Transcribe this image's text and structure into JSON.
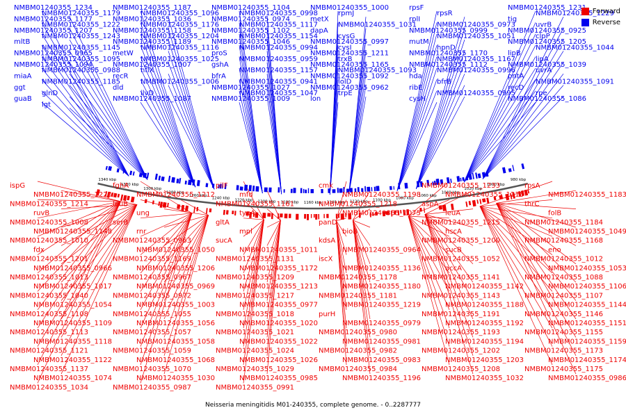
{
  "caption": "Neisseria meningitidis M01-240355, complete genome. - 0..2287777",
  "legend": [
    {
      "label": "Forward",
      "color": "#ee0000"
    },
    {
      "label": "Reverse",
      "color": "#0000ee"
    }
  ],
  "colors": {
    "forward": "#ee0000",
    "reverse": "#0000ee",
    "backbone": "#555555"
  },
  "ticks": [
    "1340 kbp",
    "1320 kbp",
    "1300 kbp",
    "1280 kbp",
    "1260 kbp",
    "1240 kbp",
    "1220 kbp",
    "1200 kbp",
    "1180 kbp",
    "1160 kbp",
    "1140 kbp",
    "1120 kbp",
    "1100 kbp",
    "1080 kbp",
    "1060 kbp",
    "1040 kbp",
    "1020 kbp",
    "1000 kbp",
    "980 kbp"
  ],
  "reverse_labels": [
    "NMBM01240355_1234",
    "NMBM01240355_1187",
    "NMBM01240355_1104",
    "NMBM01240355_1000",
    "rpsF",
    "NMBM01240355_1231",
    "NMBM01240355_1179",
    "NMBM01240355_1096",
    "NMBM01240355_0998",
    "rpmJ",
    "rpsR",
    "NMBM01240355_1229",
    "NMBM01240355_1177",
    "NMBM01240355_1036",
    "NMBM01240355_0974",
    "metX",
    "rplI",
    "tig",
    "NMBM01240355_1222",
    "NMBM01240355_1176",
    "NMBM01240355_1117",
    "NMBM01240355_1031",
    "NMBM01240355_0973",
    "uvrB",
    "NMBM01240355_1207",
    "NMBM01240355_1158",
    "NMBM01240355_1102",
    "dapA",
    "NMBM01240355_0999",
    "NMBM01240355_0925",
    "NMBM01240355_1243",
    "NMBM01240355_1204",
    "NMBM01240355_1154",
    "cysG",
    "NMBM01240355_1051",
    "clpP",
    "mltB",
    "NMBM01240355_1189",
    "NMBM01240355_1046",
    "NMBM01240355_0997",
    "mutM",
    "NMBM01240355_1205",
    "NMBM01240355_1145",
    "NMBM01240355_1116",
    "NMBM01240355_0994",
    "cysI",
    "hpnD",
    "NMBM01240355_1044",
    "NMBM01240355_0965",
    "metW",
    "proS",
    "NMBM01240355_1211",
    "NMBM01240355_1170",
    "lipB",
    "NMBM01240355_1095",
    "NMBM01240355_1025",
    "NMBM01240355_0959",
    "trxB",
    "NMBM01240355_1167",
    "lipA",
    "NMBM01240355_1094",
    "NMBM01240355_1007",
    "gshA",
    "NMBM01240355_1165",
    "NMBM01240355_1112",
    "NMBM01240355_1039",
    "NMBM01240355_0988",
    "hflX",
    "NMBM01240355_1157",
    "NMBM01240355_1093",
    "NMBM01240355_0996",
    "uvrA",
    "miaA",
    "recR",
    "bfrA",
    "NMBM01240355_1092",
    "hda",
    "pntA",
    "NMBM01240355_1185",
    "NMBM01240355_1006",
    "NMBM01240355_0941",
    "lolD",
    "bfrB",
    "NMBM01240355_1091",
    "ggt",
    "dld",
    "NMBM01240355_1027",
    "NMBM01240355_0962",
    "ribE",
    "recD",
    "glnD",
    "ilvD",
    "NMBM01240355_1047",
    "trpE",
    "NMBM01240355_0995",
    "rpe",
    "guaB",
    "NMBM01240355_1087",
    "NMBM01240355_1009",
    "lon",
    "cysH",
    "NMBM01240355_1086",
    "lgt"
  ],
  "forward_labels": [
    "ispG",
    "fghA",
    "pilF",
    "cmk",
    "NMBM01240355_1233",
    "rpsA",
    "NMBM01240355_1220",
    "NMBM01240355_1212",
    "mfd",
    "NMBM01240355_1198",
    "NMBM01240355_1216",
    "NMBM01240355_1183",
    "NMBM01240355_1214",
    "leuB",
    "NMBM01240355_1161",
    "NMBM01240355_1218",
    "aspA",
    "thrC",
    "ruvB",
    "ung",
    "typA",
    "NMBM01240355_1075",
    "leuA",
    "folB",
    "NMBM01240355_1008",
    "serB",
    "gltA",
    "panD",
    "NMBM01240355_1215",
    "NMBM01240355_1184",
    "NMBM01240355_1148",
    "rnr",
    "mpl",
    "bioB",
    "hscA",
    "NMBM01240355_1049",
    "NMBM01240355_1010",
    "NMBM01240355_0963",
    "sucA",
    "kdsA",
    "NMBM01240355_1200",
    "NMBM01240355_1168",
    "fdx",
    "NMBM01240355_1050",
    "NMBM01240355_1011",
    "NMBM01240355_0964",
    "sucB",
    "eno",
    "NMBM01240355_1201",
    "NMBM01240355_1169",
    "NMBM01240355_1131",
    "iscX",
    "NMBM01240355_1052",
    "NMBM01240355_1012",
    "NMBM01240355_0966",
    "NMBM01240355_1206",
    "NMBM01240355_1172",
    "NMBM01240355_1136",
    "accA",
    "NMBM01240355_1053",
    "NMBM01240355_1013",
    "NMBM01240355_0967",
    "NMBM01240355_1209",
    "NMBM01240355_1178",
    "NMBM01240355_1141",
    "NMBM01240355_1088",
    "NMBM01240355_1017",
    "NMBM01240355_0969",
    "NMBM01240355_1213",
    "NMBM01240355_1180",
    "NMBM01240355_1142",
    "NMBM01240355_1106",
    "NMBM01240355_1040",
    "NMBM01240355_0972",
    "NMBM01240355_1217",
    "NMBM01240355_1181",
    "NMBM01240355_1143",
    "NMBM01240355_1107",
    "NMBM01240355_1054",
    "NMBM01240355_1003",
    "NMBM01240355_0977",
    "NMBM01240355_1219",
    "NMBM01240355_1188",
    "NMBM01240355_1144",
    "NMBM01240355_1108",
    "NMBM01240355_1055",
    "NMBM01240355_1018",
    "purH",
    "NMBM01240355_1191",
    "NMBM01240355_1146",
    "NMBM01240355_1109",
    "NMBM01240355_1056",
    "NMBM01240355_1020",
    "NMBM01240355_0979",
    "NMBM01240355_1192",
    "NMBM01240355_1151",
    "NMBM01240355_1113",
    "NMBM01240355_1057",
    "NMBM01240355_1021",
    "NMBM01240355_0980",
    "NMBM01240355_1193",
    "NMBM01240355_1155",
    "NMBM01240355_1118",
    "NMBM01240355_1058",
    "NMBM01240355_1022",
    "NMBM01240355_0981",
    "NMBM01240355_1194",
    "NMBM01240355_1159",
    "NMBM01240355_1121",
    "NMBM01240355_1059",
    "NMBM01240355_1024",
    "NMBM01240355_0982",
    "NMBM01240355_1202",
    "NMBM01240355_1173",
    "NMBM01240355_1122",
    "NMBM01240355_1068",
    "NMBM01240355_1026",
    "NMBM01240355_0983",
    "NMBM01240355_1203",
    "NMBM01240355_1174",
    "NMBM01240355_1137",
    "NMBM01240355_1070",
    "NMBM01240355_1029",
    "NMBM01240355_0984",
    "NMBM01240355_1208",
    "NMBM01240355_1175",
    "NMBM01240355_1074",
    "NMBM01240355_1030",
    "NMBM01240355_0985",
    "NMBM01240355_1196",
    "NMBM01240355_1032",
    "NMBM01240355_0986",
    "NMBM01240355_1034",
    "NMBM01240355_0987",
    "NMBM01240355_0991"
  ]
}
